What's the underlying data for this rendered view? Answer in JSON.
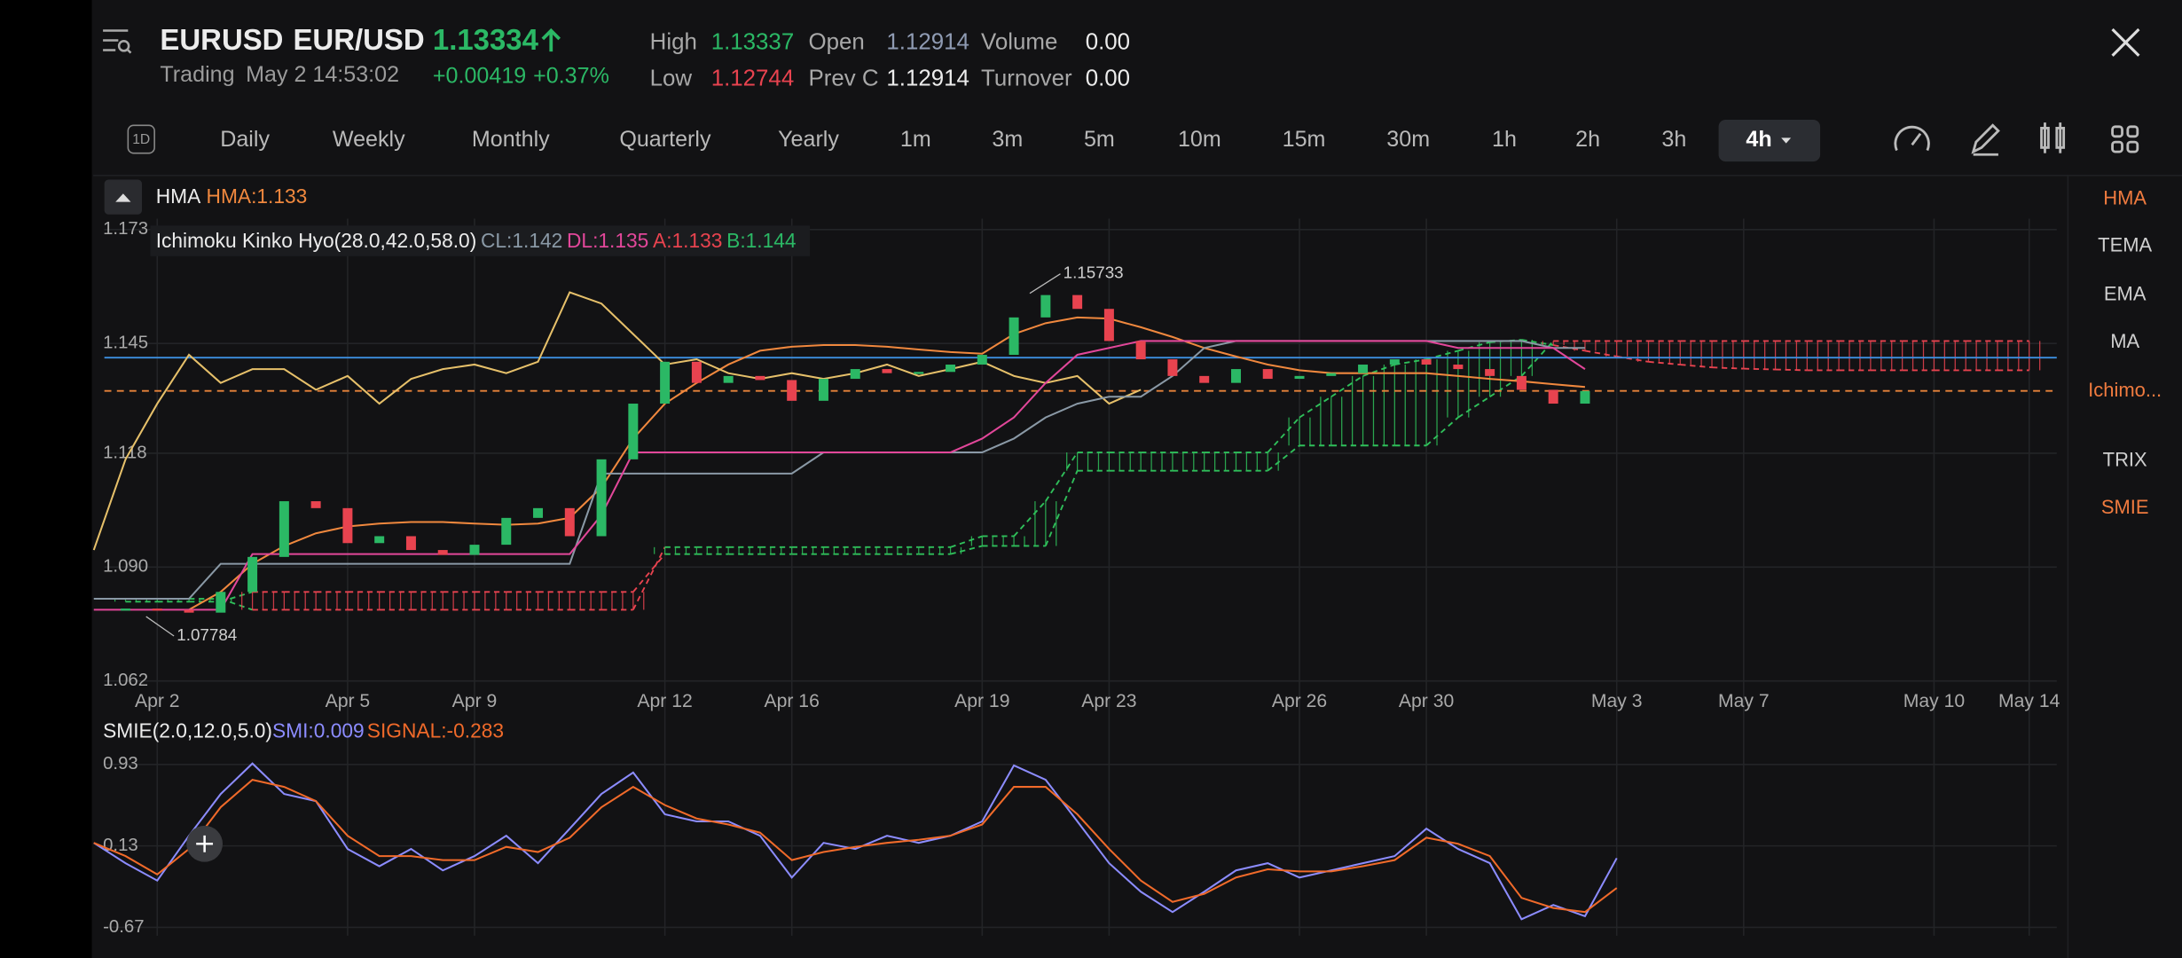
{
  "header": {
    "symbol": "EURUSD",
    "pair": "EUR/USD",
    "price": "1.13334",
    "status": "Trading",
    "time": "May 2 14:53:02",
    "change": "+0.00419",
    "change_pct": "+0.37%",
    "stats": [
      {
        "label": "High",
        "value": "1.13337"
      },
      {
        "label": "Low",
        "value": "1.12744"
      },
      {
        "label": "Open",
        "value": "1.12914"
      },
      {
        "label": "Prev C",
        "value": "1.12914"
      },
      {
        "label": "Volume",
        "value": "0.00"
      },
      {
        "label": "Turnover",
        "value": "0.00"
      }
    ]
  },
  "timeframes": {
    "icon": "1D",
    "items": [
      "Daily",
      "Weekly",
      "Monthly",
      "Quarterly",
      "Yearly",
      "1m",
      "3m",
      "5m",
      "10m",
      "15m",
      "30m",
      "1h",
      "2h",
      "3h",
      "4h"
    ]
  },
  "indicators": [
    {
      "label": "HMA",
      "active": true
    },
    {
      "label": "TEMA",
      "active": false
    },
    {
      "label": "EMA",
      "active": false
    },
    {
      "label": "MA",
      "active": false
    },
    {
      "label": "Ichimo...",
      "active": true
    },
    {
      "label": "TRIX",
      "active": false
    },
    {
      "label": "SMIE",
      "active": true
    }
  ],
  "chart_data": [
    {
      "type": "candlestick",
      "legend": {
        "hma": "HMA",
        "hma_value": "HMA:1.133",
        "ichimoku": "Ichimoku Kinko Hyo(28.0,42.0,58.0)",
        "cl": "CL:1.142",
        "dl": "DL:1.135",
        "a": "A:1.133",
        "b": "B:1.144"
      },
      "categories": [
        null,
        null,
        "Apr 2",
        null,
        null,
        null,
        null,
        null,
        "Apr 5",
        null,
        null,
        null,
        "Apr 9",
        null,
        null,
        null,
        null,
        null,
        "Apr 12",
        null,
        null,
        null,
        "Apr 16",
        null,
        null,
        null,
        null,
        null,
        "Apr 19",
        null,
        null,
        null,
        "Apr 23",
        null,
        null,
        null,
        null,
        null,
        "Apr 26",
        null,
        null,
        null,
        "Apr 30",
        null,
        null,
        null,
        null,
        null,
        "May 3",
        null,
        null,
        null,
        "May 7",
        null,
        null,
        null,
        null,
        null,
        "May 10",
        null,
        null,
        "May 14"
      ],
      "ylim": [
        1.0603,
        1.1757
      ],
      "yticks": [
        1.173,
        1.145,
        1.118,
        {
          "value": 1.09,
          "label": "1.090"
        },
        1.062
      ],
      "grid": true,
      "up_color": "#2bb865",
      "down_color": "#e8434f",
      "values": [
        null,
        1.0798,
        1.0795,
        1.0788,
        1.0839,
        1.0925,
        1.1062,
        1.1045,
        1.0959,
        1.0976,
        1.0942,
        1.093,
        1.0955,
        1.1021,
        1.1045,
        1.0976,
        1.1165,
        1.1302,
        1.1405,
        1.1353,
        1.137,
        1.136,
        1.1309,
        1.1363,
        1.1387,
        1.1377,
        1.138,
        1.1398,
        1.1422,
        1.1514,
        1.1569,
        1.1535,
        1.1456,
        1.1411,
        1.137,
        1.1353,
        1.1387,
        1.1363,
        1.137,
        1.1377,
        1.1398,
        1.1411,
        1.1398,
        1.1387,
        1.137,
        1.1336,
        1.1302,
        1.1333,
        null,
        null,
        null,
        null,
        null,
        null,
        null,
        null,
        null,
        null,
        null,
        null,
        null,
        null
      ],
      "series": [
        {
          "color": "#f0883e",
          "values": [
            null,
            null,
            null,
            1.0795,
            1.0839,
            1.0908,
            1.0952,
            1.0983,
            1.1,
            1.1007,
            1.1011,
            1.1011,
            1.1007,
            1.1004,
            1.1007,
            1.1021,
            1.1096,
            1.1216,
            1.1302,
            1.1353,
            1.1398,
            1.1432,
            1.1442,
            1.1446,
            1.1446,
            1.1442,
            1.1435,
            1.1429,
            1.1425,
            1.1473,
            1.15,
            1.1514,
            1.1511,
            1.149,
            1.1466,
            1.1439,
            1.1418,
            1.1398,
            1.1384,
            1.1377,
            1.1377,
            1.1377,
            1.1377,
            1.137,
            1.1363,
            1.1357,
            1.135,
            1.1343,
            null,
            null,
            null,
            null,
            null,
            null,
            null,
            null,
            null,
            null,
            null,
            null,
            null,
            null
          ]
        },
        {
          "color": "#e6c06a",
          "values": [
            1.0942,
            1.1165,
            1.1302,
            1.1422,
            1.1353,
            1.1387,
            1.1387,
            1.1336,
            1.137,
            1.1302,
            1.1363,
            1.1387,
            1.1398,
            1.1377,
            1.1405,
            1.1576,
            1.1548,
            1.1473,
            1.1398,
            1.1411,
            1.1377,
            1.1363,
            1.1377,
            1.1363,
            1.1377,
            1.1398,
            1.137,
            1.1387,
            1.1405,
            1.137,
            1.1353,
            1.137,
            1.1302,
            1.1336,
            null,
            null,
            null,
            null,
            null,
            null,
            null,
            null,
            null,
            null,
            null,
            null,
            null,
            null,
            null,
            null,
            null,
            null,
            null,
            null,
            null,
            null,
            null,
            null,
            null,
            null,
            null,
            null
          ]
        },
        {
          "color": "#8a99a6",
          "values": [
            1.0822,
            1.0822,
            1.0822,
            1.0822,
            1.0908,
            1.0908,
            1.0908,
            1.0908,
            1.0908,
            1.0908,
            1.0908,
            1.0908,
            1.0908,
            1.0908,
            1.0908,
            1.0908,
            1.113,
            1.113,
            1.113,
            1.113,
            1.113,
            1.113,
            1.113,
            1.1182,
            1.1182,
            1.1182,
            1.1182,
            1.1182,
            1.1182,
            1.1216,
            1.1268,
            1.1302,
            1.1319,
            1.1319,
            1.137,
            1.1439,
            1.1456,
            1.1456,
            1.1456,
            1.1456,
            1.1456,
            1.1456,
            1.1456,
            1.1456,
            1.1456,
            1.1456,
            1.1439,
            1.1439,
            null,
            null,
            null,
            null,
            null,
            null,
            null,
            null,
            null,
            null,
            null,
            null,
            null,
            null
          ]
        },
        {
          "color": "#e2479a",
          "values": [
            1.0795,
            1.0795,
            1.0795,
            1.0795,
            1.0795,
            1.0932,
            1.0932,
            1.0932,
            1.0932,
            1.0932,
            1.0932,
            1.0932,
            1.0932,
            1.0932,
            1.0932,
            1.0932,
            1.1028,
            1.1182,
            1.1182,
            1.1182,
            1.1182,
            1.1182,
            1.1182,
            1.1182,
            1.1182,
            1.1182,
            1.1182,
            1.1182,
            1.1216,
            1.1268,
            1.1353,
            1.1422,
            1.1439,
            1.1456,
            1.1456,
            1.1456,
            1.1456,
            1.1456,
            1.1456,
            1.1456,
            1.1456,
            1.1456,
            1.1456,
            1.1439,
            1.1439,
            1.1439,
            1.1439,
            1.1387,
            null,
            null,
            null,
            null,
            null,
            null,
            null,
            null,
            null,
            null,
            null,
            null,
            null,
            null
          ]
        }
      ],
      "cloud": {
        "a": [
          null,
          1.0822,
          1.0822,
          1.0822,
          1.0822,
          1.0795,
          1.0795,
          1.0795,
          1.0795,
          1.0795,
          1.0795,
          1.0795,
          1.0795,
          1.0795,
          1.0795,
          1.0795,
          1.0795,
          1.0795,
          1.0949,
          1.0949,
          1.0949,
          1.0949,
          1.0949,
          1.0949,
          1.0949,
          1.0949,
          1.0949,
          1.0949,
          1.0976,
          1.0976,
          1.1062,
          1.1182,
          1.1182,
          1.1182,
          1.1182,
          1.1182,
          1.1182,
          1.1182,
          1.1268,
          1.1319,
          1.137,
          1.1398,
          1.1411,
          1.1432,
          1.1453,
          1.1459,
          1.1446,
          1.1432,
          1.1418,
          1.1405,
          1.1398,
          1.1391,
          1.1388,
          1.1386,
          1.1384,
          1.1384,
          1.1384,
          1.1384,
          1.1384,
          1.1384,
          1.1384,
          1.1384
        ],
        "b": [
          null,
          1.0815,
          1.0815,
          1.0815,
          1.0815,
          1.0839,
          1.0839,
          1.0839,
          1.0839,
          1.0839,
          1.0839,
          1.0839,
          1.0839,
          1.0839,
          1.0839,
          1.0839,
          1.0839,
          1.0839,
          1.0932,
          1.0932,
          1.0932,
          1.0932,
          1.0932,
          1.0932,
          1.0932,
          1.0932,
          1.0932,
          1.0932,
          1.0952,
          1.0952,
          1.0952,
          1.1137,
          1.1137,
          1.1137,
          1.1137,
          1.1137,
          1.1137,
          1.1137,
          1.1199,
          1.1199,
          1.1199,
          1.1199,
          1.1199,
          1.1268,
          1.1319,
          1.137,
          1.1456,
          1.1456,
          1.1456,
          1.1456,
          1.1456,
          1.1456,
          1.1456,
          1.1456,
          1.1456,
          1.1456,
          1.1456,
          1.1456,
          1.1456,
          1.1456,
          1.1456,
          1.1456
        ],
        "up_color": "#2fbf5a",
        "down_color": "#e8434f"
      },
      "last_price": 1.13334,
      "last_price_color": "#e8843a",
      "reference_line": 1.1415,
      "reference_color": "#3d8fe0",
      "annotations": [
        1.15733,
        1.07784
      ]
    },
    {
      "type": "line",
      "legend": {
        "name": "SMIE(2.0,12.0,5.0)",
        "smi": "SMI:0.009",
        "signal": "SIGNAL:-0.283"
      },
      "ylim": [
        -0.752,
        1.053
      ],
      "yticks": [
        0.93,
        0.13,
        -0.67
      ],
      "series": [
        {
          "color": "#8c8cff",
          "values": [
            0.16,
            -0.04,
            -0.21,
            0.23,
            0.64,
            0.94,
            0.64,
            0.57,
            0.1,
            -0.07,
            0.1,
            -0.11,
            0.03,
            0.23,
            -0.04,
            0.3,
            0.64,
            0.85,
            0.44,
            0.37,
            0.37,
            0.23,
            -0.18,
            0.16,
            0.1,
            0.23,
            0.16,
            0.23,
            0.37,
            0.92,
            0.78,
            0.37,
            -0.04,
            -0.32,
            -0.52,
            -0.32,
            -0.11,
            -0.04,
            -0.18,
            -0.11,
            -0.04,
            0.03,
            0.3,
            0.1,
            -0.04,
            -0.59,
            -0.45,
            -0.56,
            0.009
          ]
        },
        {
          "color": "#f06a2a",
          "values": [
            0.16,
            0.03,
            -0.15,
            0.1,
            0.51,
            0.78,
            0.71,
            0.57,
            0.23,
            0.03,
            0.03,
            -0.01,
            -0.01,
            0.12,
            0.07,
            0.21,
            0.51,
            0.71,
            0.53,
            0.4,
            0.34,
            0.26,
            -0.01,
            0.07,
            0.12,
            0.16,
            0.19,
            0.23,
            0.34,
            0.71,
            0.71,
            0.44,
            0.1,
            -0.21,
            -0.42,
            -0.34,
            -0.18,
            -0.1,
            -0.12,
            -0.12,
            -0.07,
            -0.01,
            0.21,
            0.15,
            0.03,
            -0.38,
            -0.48,
            -0.52,
            -0.283
          ]
        }
      ]
    }
  ]
}
